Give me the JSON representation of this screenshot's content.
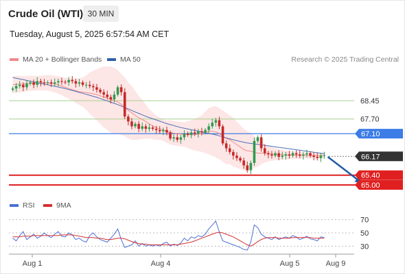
{
  "header": {
    "title": "Crude Oil (WTI)",
    "interval": "30 MIN",
    "datetime": "Tuesday, August 5, 2025 6:57:54 AM CET"
  },
  "legend": {
    "ma20": "MA 20 + Bollinger Bands",
    "ma50": "MA 50",
    "rsi": "RSI",
    "rsi_ma": "9MA",
    "credit": "Research © 2025 Trading Central"
  },
  "colors": {
    "ma20": "#f28a8a",
    "ma50": "#4a6fb5",
    "band": "#fde6e6",
    "up": "#2e9b4f",
    "down": "#c62828",
    "support": "#e02020",
    "resistance": "#3b7ce6",
    "current": "#333333",
    "target_line": "#a8d08d",
    "arrow": "#1f5aa8",
    "rsi": "#4a6fd6",
    "rsi_ma": "#d32f2f"
  },
  "chart_data": [
    {
      "type": "candlestick",
      "ylim": [
        64.55,
        69.6
      ],
      "x_ticks": [
        "Aug 1",
        "Aug 4",
        "Aug 5",
        "Aug 9"
      ],
      "levels": [
        {
          "label": "68.45",
          "value": 68.45,
          "kind": "target"
        },
        {
          "label": "67.70",
          "value": 67.7,
          "kind": "target"
        },
        {
          "label": "67.10",
          "value": 67.1,
          "kind": "resistance"
        },
        {
          "label": "66.17",
          "value": 66.17,
          "kind": "current"
        },
        {
          "label": "65.40",
          "value": 65.4,
          "kind": "support"
        },
        {
          "label": "65.00",
          "value": 65.0,
          "kind": "support"
        }
      ],
      "close": [
        68.95,
        69.05,
        69.1,
        69.0,
        69.15,
        69.2,
        69.1,
        69.25,
        69.2,
        69.18,
        69.2,
        69.15,
        69.2,
        69.25,
        69.22,
        69.2,
        69.3,
        69.25,
        69.15,
        69.2,
        69.1,
        69.1,
        69.05,
        69.0,
        68.9,
        68.8,
        68.7,
        68.6,
        68.5,
        68.7,
        69.0,
        68.8,
        67.8,
        67.6,
        67.4,
        67.5,
        67.3,
        67.4,
        67.3,
        67.35,
        67.3,
        67.25,
        67.2,
        67.25,
        67.15,
        66.9,
        66.95,
        66.85,
        66.95,
        67.1,
        67.05,
        67.15,
        67.1,
        67.2,
        67.15,
        67.25,
        67.4,
        67.55,
        67.65,
        67.4,
        66.7,
        66.5,
        66.35,
        66.2,
        66.1,
        66.0,
        65.8,
        65.6,
        65.9,
        66.8,
        66.95,
        66.5,
        66.3,
        66.25,
        66.2,
        66.3,
        66.15,
        66.2,
        66.25,
        66.2,
        66.3,
        66.25,
        66.2,
        66.25,
        66.3,
        66.2,
        66.15,
        66.1,
        66.2,
        66.22
      ],
      "ma20": [
        69.1,
        69.12,
        69.13,
        69.13,
        69.15,
        69.16,
        69.16,
        69.17,
        69.17,
        69.18,
        69.18,
        69.16,
        69.13,
        69.1,
        69.05,
        69.0,
        68.95,
        68.9,
        68.86,
        68.82,
        68.8,
        68.78,
        68.76,
        68.73,
        68.7,
        68.65,
        68.6,
        68.55,
        68.5,
        68.45,
        68.4,
        68.3,
        68.2,
        68.05,
        67.95,
        67.85,
        67.75,
        67.68,
        67.6,
        67.5,
        67.42,
        67.35,
        67.3,
        67.25,
        67.18,
        67.15,
        67.12,
        67.1,
        67.08,
        67.07,
        67.06,
        67.05,
        67.06,
        67.08,
        67.1,
        67.15,
        67.2,
        67.2,
        67.18,
        67.1,
        67.0,
        66.9,
        66.85,
        66.75,
        66.65,
        66.55,
        66.45,
        66.4,
        66.38,
        66.35,
        66.3,
        66.3,
        66.3,
        66.28,
        66.27,
        66.26,
        66.25,
        66.24,
        66.23,
        66.23,
        66.22,
        66.22,
        66.21,
        66.21,
        66.21,
        66.2,
        66.2,
        66.2,
        66.2,
        66.2
      ],
      "ma50": [
        69.4,
        69.37,
        69.34,
        69.31,
        69.28,
        69.25,
        69.22,
        69.19,
        69.16,
        69.13,
        69.1,
        69.07,
        69.04,
        69.01,
        68.98,
        68.95,
        68.91,
        68.87,
        68.83,
        68.79,
        68.75,
        68.71,
        68.67,
        68.63,
        68.59,
        68.54,
        68.49,
        68.44,
        68.39,
        68.34,
        68.29,
        68.23,
        68.17,
        68.11,
        68.05,
        67.99,
        67.93,
        67.87,
        67.81,
        67.76,
        67.71,
        67.66,
        67.61,
        67.56,
        67.51,
        67.47,
        67.43,
        67.39,
        67.35,
        67.32,
        67.29,
        67.26,
        67.23,
        67.2,
        67.17,
        67.14,
        67.11,
        67.08,
        67.05,
        67.01,
        66.97,
        66.93,
        66.89,
        66.85,
        66.81,
        66.78,
        66.75,
        66.72,
        66.7,
        66.68,
        66.66,
        66.64,
        66.62,
        66.6,
        66.58,
        66.56,
        66.54,
        66.52,
        66.5,
        66.48,
        66.46,
        66.44,
        66.42,
        66.4,
        66.38,
        66.36,
        66.34,
        66.32,
        66.3,
        66.28
      ],
      "band_width": [
        0.35,
        0.35,
        0.34,
        0.33,
        0.32,
        0.31,
        0.3,
        0.3,
        0.3,
        0.31,
        0.32,
        0.33,
        0.34,
        0.36,
        0.38,
        0.4,
        0.42,
        0.45,
        0.5,
        0.55,
        0.6,
        0.7,
        0.85,
        0.95,
        1.05,
        1.15,
        1.25,
        1.3,
        1.35,
        1.35,
        1.3,
        1.25,
        1.2,
        1.15,
        1.1,
        1.0,
        0.9,
        0.8,
        0.7,
        0.6,
        0.55,
        0.5,
        0.45,
        0.45,
        0.45,
        0.5,
        0.5,
        0.5,
        0.5,
        0.5,
        0.55,
        0.6,
        0.65,
        0.7,
        0.75,
        0.85,
        0.95,
        1.0,
        1.05,
        1.05,
        1.05,
        1.05,
        1.0,
        1.0,
        0.95,
        0.9,
        0.85,
        0.8,
        0.75,
        0.65,
        0.55,
        0.45,
        0.38,
        0.32,
        0.28,
        0.25,
        0.22,
        0.2,
        0.18,
        0.17,
        0.16,
        0.15,
        0.14,
        0.13,
        0.12,
        0.12,
        0.12,
        0.11,
        0.11,
        0.11
      ],
      "arrow": {
        "from": [
          90,
          66.15
        ],
        "to": [
          99,
          65.05
        ]
      }
    },
    {
      "type": "line",
      "ylim": [
        20,
        80
      ],
      "y_ticks": [
        70,
        50,
        30
      ],
      "series": [
        {
          "name": "RSI",
          "values": [
            42,
            38,
            46,
            52,
            40,
            44,
            48,
            42,
            45,
            50,
            46,
            43,
            48,
            52,
            45,
            44,
            50,
            47,
            40,
            42,
            38,
            36,
            46,
            50,
            44,
            40,
            38,
            36,
            42,
            48,
            56,
            40,
            28,
            30,
            32,
            38,
            30,
            34,
            30,
            32,
            30,
            32,
            30,
            34,
            36,
            30,
            33,
            31,
            35,
            42,
            38,
            44,
            42,
            46,
            44,
            48,
            56,
            62,
            68,
            52,
            38,
            36,
            34,
            32,
            30,
            28,
            25,
            24,
            36,
            62,
            58,
            48,
            44,
            42,
            40,
            44,
            40,
            42,
            44,
            42,
            46,
            44,
            40,
            42,
            45,
            41,
            40,
            38,
            44,
            43
          ]
        },
        {
          "name": "9MA",
          "values": [
            44,
            44,
            44,
            45,
            45,
            45,
            46,
            46,
            46,
            46,
            46,
            46,
            46,
            46,
            47,
            47,
            47,
            47,
            46,
            45,
            44,
            43,
            43,
            43,
            42,
            42,
            41,
            40,
            40,
            41,
            42,
            42,
            41,
            39,
            37,
            35,
            34,
            33,
            33,
            32,
            32,
            32,
            32,
            32,
            32,
            32,
            32,
            32,
            33,
            34,
            35,
            36,
            38,
            40,
            42,
            44,
            46,
            48,
            50,
            51,
            50,
            48,
            46,
            44,
            41,
            38,
            35,
            32,
            30,
            33,
            37,
            40,
            42,
            43,
            43,
            43,
            42,
            42,
            42,
            42,
            43,
            43,
            43,
            43,
            43,
            43,
            42,
            42,
            42,
            42
          ]
        }
      ]
    }
  ]
}
